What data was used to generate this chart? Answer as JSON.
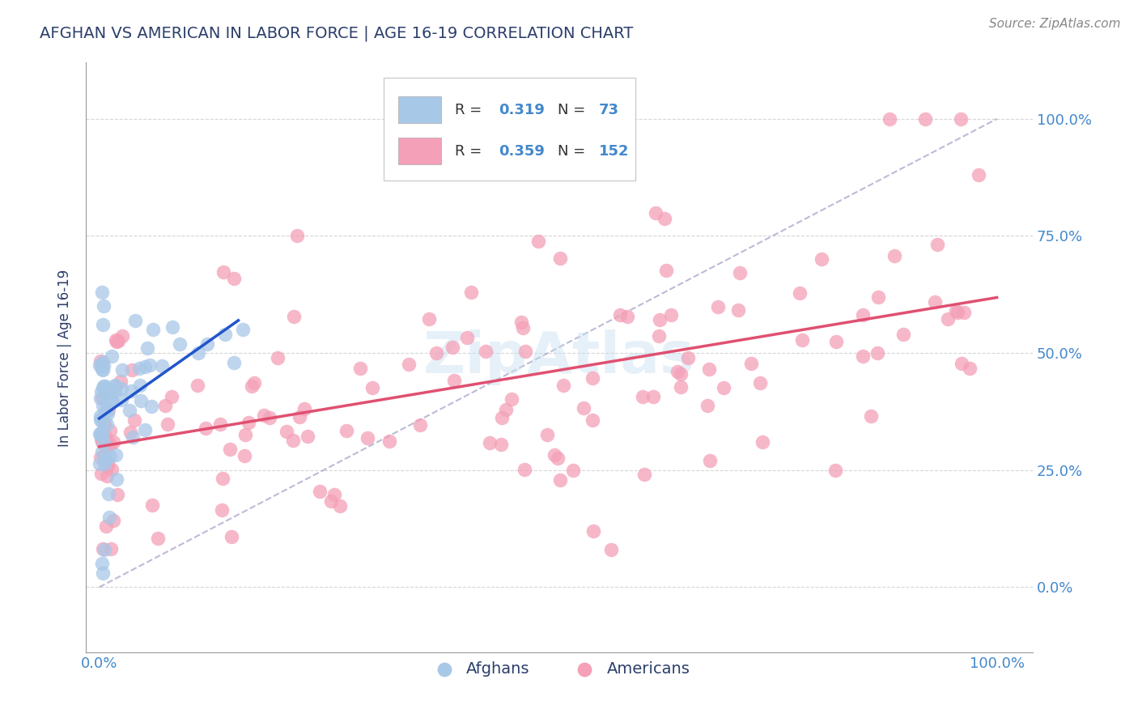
{
  "title": "AFGHAN VS AMERICAN IN LABOR FORCE | AGE 16-19 CORRELATION CHART",
  "source_text": "Source: ZipAtlas.com",
  "ylabel": "In Labor Force | Age 16-19",
  "afghan_color": "#a8c8e8",
  "american_color": "#f4a0b8",
  "afghan_line_color": "#2255cc",
  "american_line_color": "#e05070",
  "diag_line_color": "#aaaacc",
  "watermark_text": "ZipAtlas",
  "background_color": "#ffffff",
  "grid_color": "#cccccc",
  "title_color": "#2c3e6b",
  "axis_label_color": "#2c3e6b",
  "tick_label_color": "#4488cc",
  "legend_box_color": "#dddddd",
  "source_color": "#888888",
  "r_text_color": "#333333",
  "n_text_color": "#4488cc",
  "r_val_color": "#4488cc",
  "afghan_r": "0.319",
  "afghan_n": "73",
  "american_r": "0.359",
  "american_n": "152"
}
